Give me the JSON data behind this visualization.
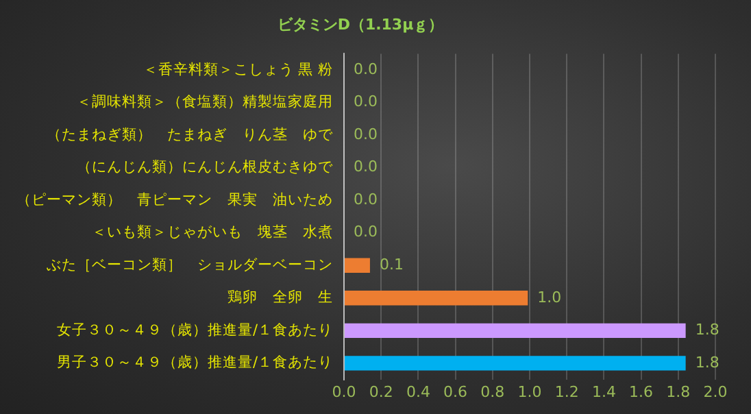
{
  "chart_data": {
    "type": "bar",
    "orientation": "horizontal",
    "title": "ビタミンD（1.13μｇ）",
    "categories": [
      "＜香辛料類＞こしょう 黒 粉",
      "＜調味料類＞（食塩類）精製塩家庭用",
      "（たまねぎ類）　たまねぎ　りん茎　ゆで",
      "（にんじん類）にんじん根皮むきゆで",
      "（ピーマン類）　青ピーマン　果実　油いため",
      "＜いも類＞じゃがいも　塊茎　水煮",
      "ぶた［ベーコン類］　ショルダーベーコン",
      "鶏卵　全卵　生",
      "女子３０～４９（歳）推進量/１食あたり",
      "男子３０～４９（歳）推進量/１食あたり"
    ],
    "values": [
      0,
      0,
      0,
      0,
      0,
      0,
      0.14,
      0.99,
      1.84,
      1.84
    ],
    "colors": [
      "#ed7d31",
      "#ed7d31",
      "#ed7d31",
      "#ed7d31",
      "#ed7d31",
      "#ed7d31",
      "#ed7d31",
      "#ed7d31",
      "#cc99ff",
      "#00b0f0"
    ],
    "value_labels": [
      "0.0",
      "0.0",
      "0.0",
      "0.0",
      "0.0",
      "0.0",
      "0.1",
      "1.0",
      "1.8",
      "1.8"
    ],
    "xlim": [
      0,
      2
    ],
    "xticks": [
      {
        "value": 0,
        "label": "0.0"
      },
      {
        "value": 0.2,
        "label": "0.2"
      },
      {
        "value": 0.4,
        "label": "0.4"
      },
      {
        "value": 0.6,
        "label": "0.6"
      },
      {
        "value": 0.8,
        "label": "0.8"
      },
      {
        "value": 1,
        "label": "1.0"
      },
      {
        "value": 1.2,
        "label": "1.2"
      },
      {
        "value": 1.4,
        "label": "1.4"
      },
      {
        "value": 1.6,
        "label": "1.6"
      },
      {
        "value": 1.8,
        "label": "1.8"
      },
      {
        "value": 2,
        "label": "2.0"
      }
    ],
    "grid": "x",
    "legend": false
  }
}
